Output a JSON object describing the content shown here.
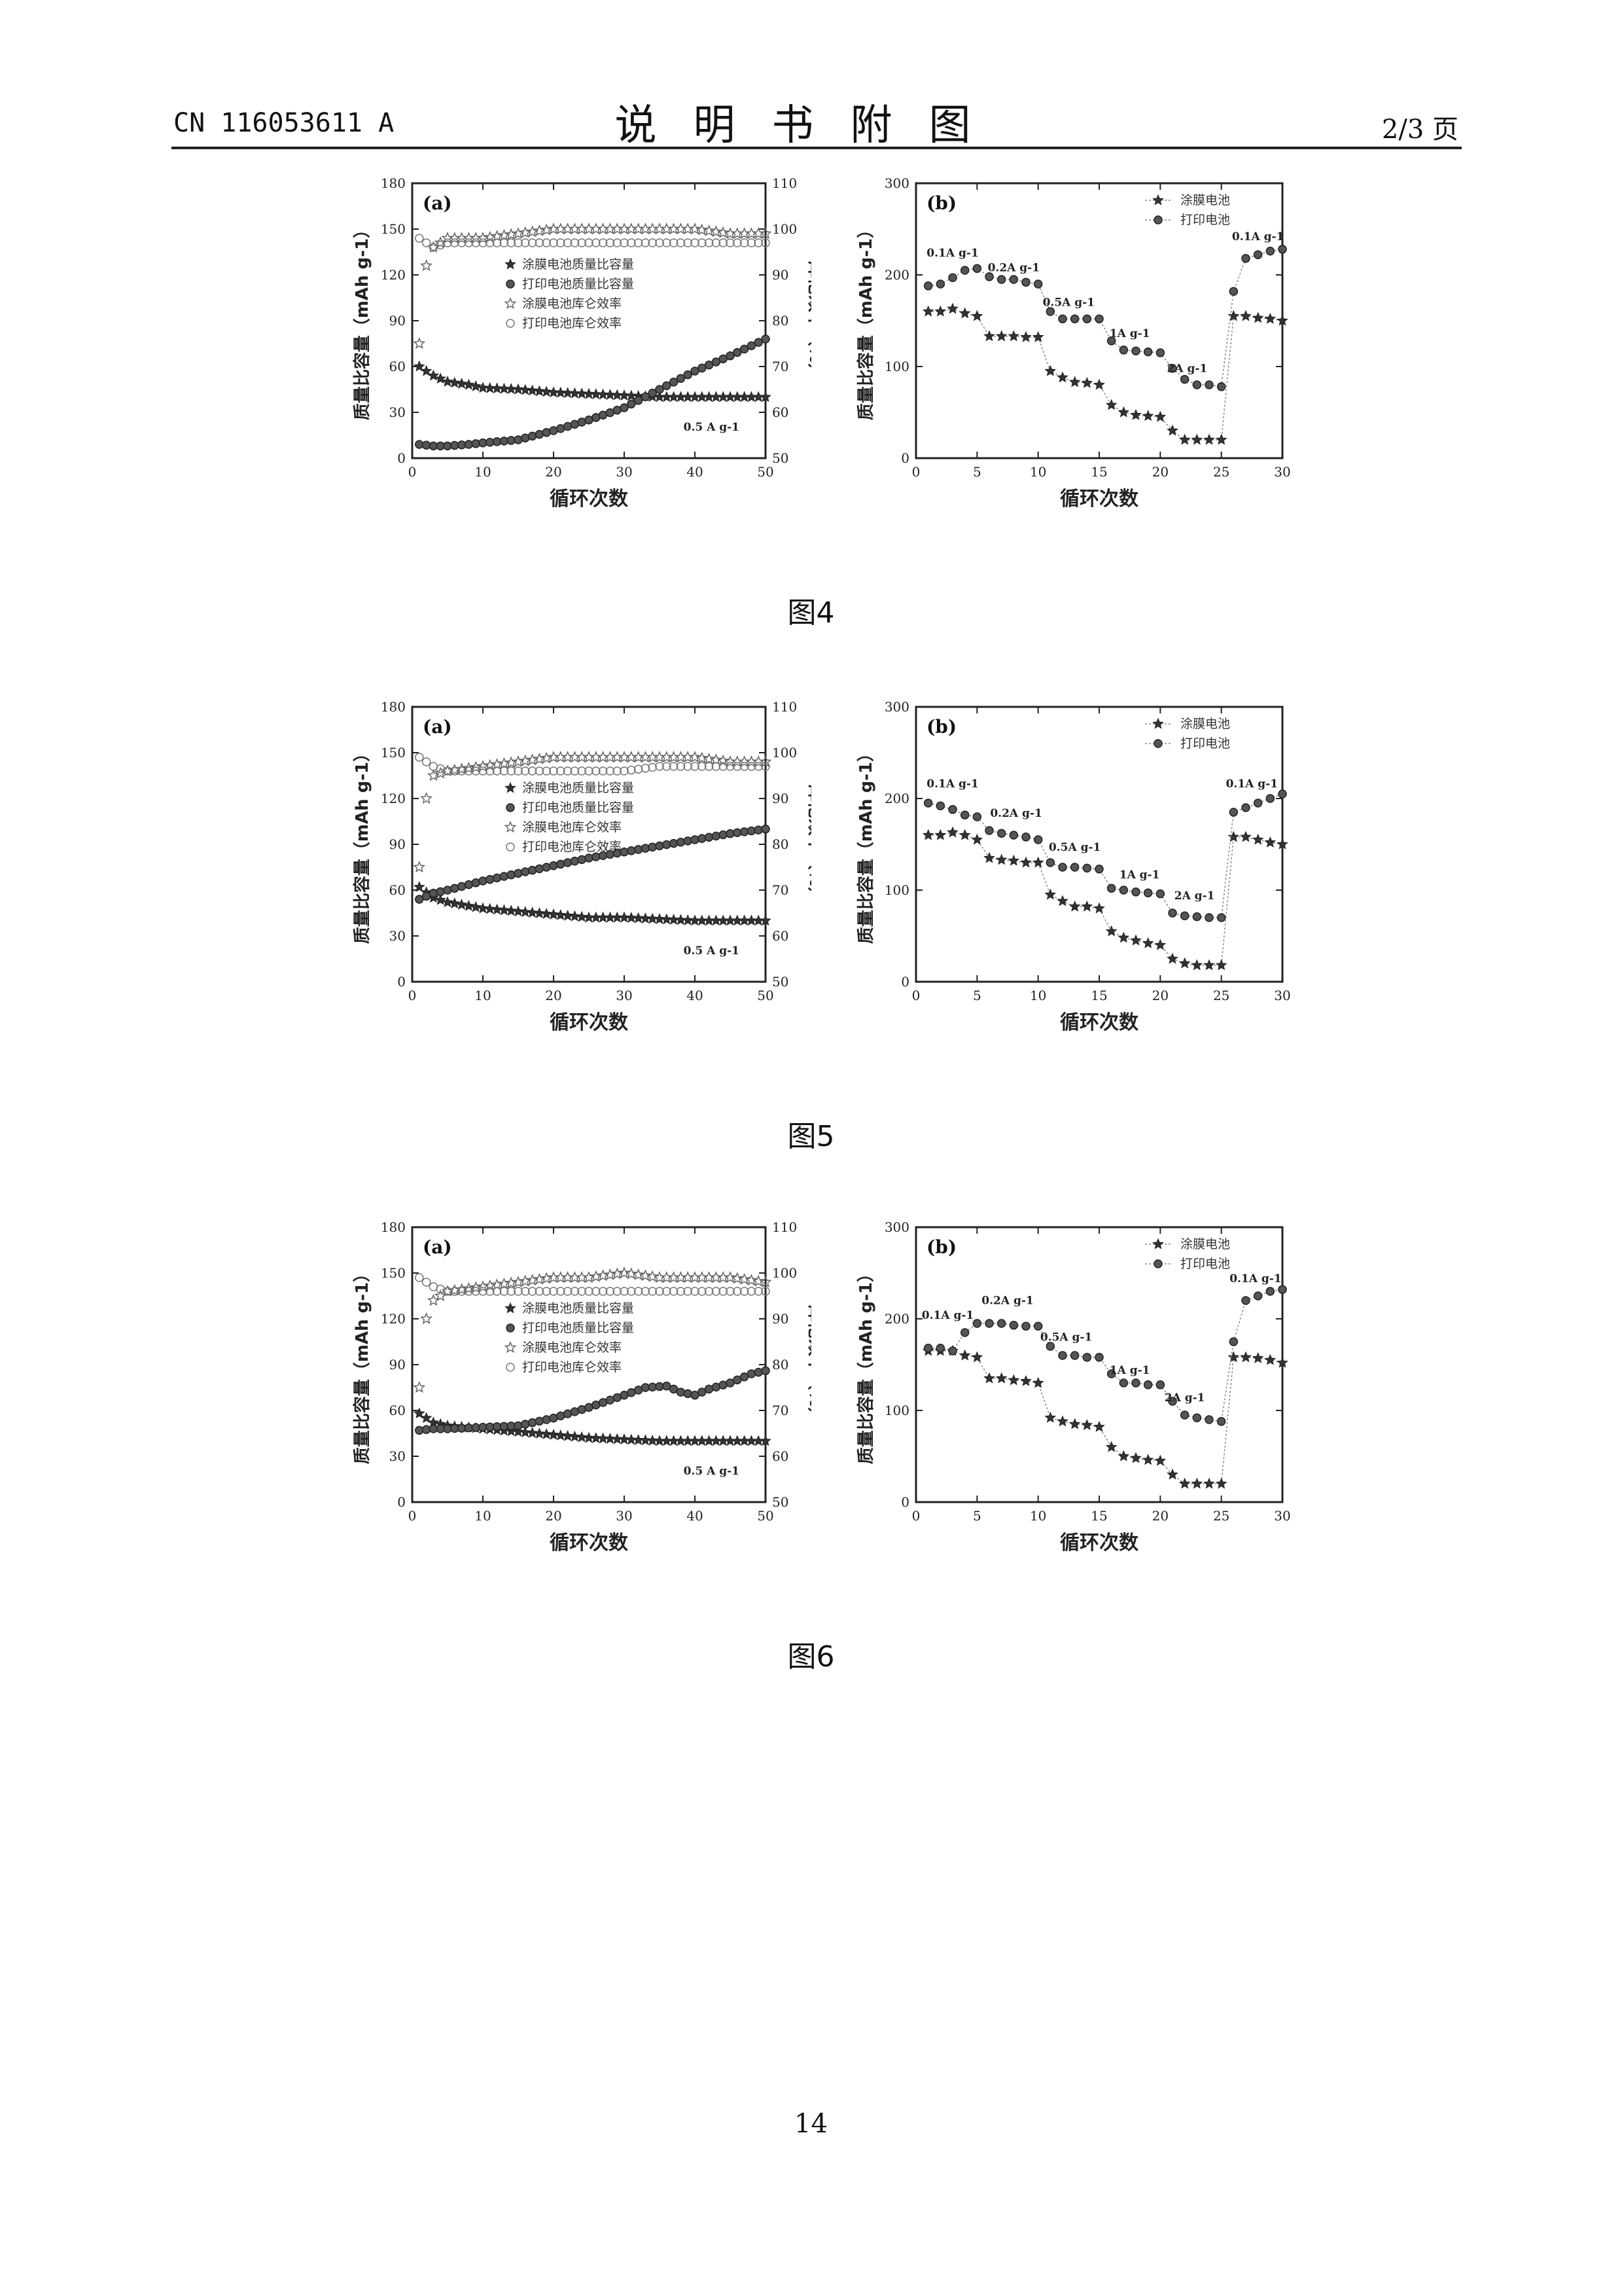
{
  "header": {
    "doc_number": "CN 116053611 A",
    "section_title": "说明书附图",
    "page_of": "2/3 页"
  },
  "page_number": "14",
  "figures": [
    {
      "caption": "图4"
    },
    {
      "caption": "图5"
    },
    {
      "caption": "图6"
    }
  ],
  "chart_data": [
    {
      "figure": "图4",
      "panel": "(a)",
      "type": "scatter",
      "xlabel": "循环次数",
      "ylabel": "质量比容量（mAh g-1）",
      "y2label": "库伦效率（%）",
      "xlim": [
        0,
        50
      ],
      "ylim": [
        0,
        180
      ],
      "y2lim": [
        50,
        110
      ],
      "xticks": [
        0,
        10,
        20,
        30,
        40,
        50
      ],
      "yticks": [
        0,
        30,
        60,
        90,
        120,
        150,
        180
      ],
      "y2ticks": [
        50,
        60,
        70,
        80,
        90,
        100,
        110
      ],
      "annotation": "0.5 A g-1",
      "legend_position": "center",
      "series": [
        {
          "name": "涂膜电池质量比容量",
          "axis": "left",
          "marker": "star",
          "x": [
            1,
            3,
            5,
            8,
            10,
            15,
            20,
            25,
            30,
            35,
            40,
            45,
            50
          ],
          "values": [
            60,
            54,
            50,
            48,
            46,
            45,
            43,
            42,
            41,
            40,
            40,
            40,
            40
          ]
        },
        {
          "name": "打印电池质量比容量",
          "axis": "left",
          "marker": "filled-circle",
          "x": [
            1,
            3,
            5,
            8,
            10,
            15,
            20,
            25,
            30,
            35,
            40,
            45,
            50
          ],
          "values": [
            9,
            8,
            8,
            9,
            10,
            12,
            18,
            25,
            33,
            45,
            57,
            67,
            78
          ]
        },
        {
          "name": "涂膜电池库仑效率",
          "axis": "right",
          "marker": "open-star",
          "x": [
            1,
            2,
            3,
            5,
            10,
            15,
            20,
            25,
            30,
            35,
            40,
            45,
            50
          ],
          "values": [
            75,
            92,
            96,
            98,
            98,
            99,
            100,
            100,
            100,
            100,
            100,
            99,
            99
          ]
        },
        {
          "name": "打印电池库仑效率",
          "axis": "right",
          "marker": "open-circle",
          "x": [
            1,
            2,
            3,
            5,
            10,
            15,
            20,
            25,
            30,
            35,
            40,
            45,
            50
          ],
          "values": [
            98,
            97,
            96,
            97,
            97,
            97,
            97,
            97,
            97,
            97,
            97,
            97,
            97
          ]
        }
      ]
    },
    {
      "figure": "图4",
      "panel": "(b)",
      "type": "line",
      "xlabel": "循环次数",
      "ylabel": "质量比容量（mAh g-1）",
      "xlim": [
        0,
        30
      ],
      "ylim": [
        0,
        300
      ],
      "xticks": [
        0,
        5,
        10,
        15,
        20,
        25,
        30
      ],
      "yticks": [
        0,
        100,
        200,
        300
      ],
      "legend_position": "top-right",
      "rate_labels": [
        {
          "text": "0.1A g-1",
          "x": 3,
          "y": 220
        },
        {
          "text": "0.2A g-1",
          "x": 8,
          "y": 204
        },
        {
          "text": "0.5A g-1",
          "x": 12.5,
          "y": 166
        },
        {
          "text": "1A g-1",
          "x": 17.5,
          "y": 132
        },
        {
          "text": "2A g-1",
          "x": 22.2,
          "y": 94
        },
        {
          "text": "0.1A g-1",
          "x": 28,
          "y": 238
        }
      ],
      "series": [
        {
          "name": "涂膜电池",
          "marker": "star",
          "x": [
            1,
            2,
            3,
            4,
            5,
            6,
            7,
            8,
            9,
            10,
            11,
            12,
            13,
            14,
            15,
            16,
            17,
            18,
            19,
            20,
            21,
            22,
            23,
            24,
            25,
            26,
            27,
            28,
            29,
            30
          ],
          "values": [
            160,
            160,
            163,
            158,
            155,
            133,
            133,
            133,
            132,
            132,
            95,
            88,
            83,
            82,
            80,
            58,
            50,
            47,
            46,
            45,
            30,
            20,
            20,
            20,
            20,
            155,
            155,
            153,
            152,
            150
          ]
        },
        {
          "name": "打印电池",
          "marker": "filled-circle",
          "x": [
            1,
            2,
            3,
            4,
            5,
            6,
            7,
            8,
            9,
            10,
            11,
            12,
            13,
            14,
            15,
            16,
            17,
            18,
            19,
            20,
            21,
            22,
            23,
            24,
            25,
            26,
            27,
            28,
            29,
            30
          ],
          "values": [
            188,
            190,
            197,
            205,
            207,
            198,
            195,
            195,
            192,
            190,
            160,
            152,
            152,
            152,
            152,
            128,
            118,
            117,
            116,
            115,
            98,
            86,
            80,
            80,
            78,
            182,
            218,
            222,
            226,
            228
          ]
        }
      ]
    },
    {
      "figure": "图5",
      "panel": "(a)",
      "type": "scatter",
      "xlabel": "循环次数",
      "ylabel": "质量比容量（mAh g-1）",
      "y2label": "库伦效率（%）",
      "xlim": [
        0,
        50
      ],
      "ylim": [
        0,
        180
      ],
      "y2lim": [
        50,
        110
      ],
      "xticks": [
        0,
        10,
        20,
        30,
        40,
        50
      ],
      "yticks": [
        0,
        30,
        60,
        90,
        120,
        150,
        180
      ],
      "y2ticks": [
        50,
        60,
        70,
        80,
        90,
        100,
        110
      ],
      "annotation": "0.5 A g-1",
      "legend_position": "center",
      "series": [
        {
          "name": "涂膜电池质量比容量",
          "axis": "left",
          "marker": "star",
          "x": [
            1,
            3,
            5,
            10,
            15,
            20,
            25,
            30,
            35,
            40,
            45,
            50
          ],
          "values": [
            62,
            55,
            52,
            48,
            46,
            44,
            42,
            42,
            41,
            40,
            40,
            40
          ]
        },
        {
          "name": "打印电池质量比容量",
          "axis": "left",
          "marker": "filled-circle",
          "x": [
            1,
            3,
            5,
            10,
            15,
            20,
            25,
            30,
            35,
            40,
            45,
            50
          ],
          "values": [
            54,
            58,
            60,
            66,
            71,
            76,
            81,
            85,
            89,
            93,
            97,
            100
          ]
        },
        {
          "name": "涂膜电池库仑效率",
          "axis": "right",
          "marker": "open-star",
          "x": [
            1,
            2,
            3,
            5,
            10,
            15,
            20,
            25,
            30,
            35,
            40,
            45,
            50
          ],
          "values": [
            75,
            90,
            95,
            96,
            97,
            98,
            99,
            99,
            99,
            99,
            99,
            98,
            98
          ]
        },
        {
          "name": "打印电池库仑效率",
          "axis": "right",
          "marker": "open-circle",
          "x": [
            1,
            2,
            3,
            5,
            10,
            15,
            20,
            25,
            30,
            35,
            40,
            45,
            50
          ],
          "values": [
            99,
            98,
            97,
            96,
            96,
            96,
            96,
            96,
            96,
            97,
            97,
            97,
            97
          ]
        }
      ]
    },
    {
      "figure": "图5",
      "panel": "(b)",
      "type": "line",
      "xlabel": "循环次数",
      "ylabel": "质量比容量（mAh g-1）",
      "xlim": [
        0,
        30
      ],
      "ylim": [
        0,
        300
      ],
      "xticks": [
        0,
        5,
        10,
        15,
        20,
        25,
        30
      ],
      "yticks": [
        0,
        100,
        200,
        300
      ],
      "legend_position": "top-right",
      "rate_labels": [
        {
          "text": "0.1A g-1",
          "x": 3,
          "y": 212
        },
        {
          "text": "0.2A g-1",
          "x": 8.2,
          "y": 180
        },
        {
          "text": "0.5A g-1",
          "x": 13,
          "y": 143
        },
        {
          "text": "1A g-1",
          "x": 18.3,
          "y": 113
        },
        {
          "text": "2A g-1",
          "x": 22.8,
          "y": 90
        },
        {
          "text": "0.1A g-1",
          "x": 27.5,
          "y": 212
        }
      ],
      "series": [
        {
          "name": "涂膜电池",
          "marker": "star",
          "x": [
            1,
            2,
            3,
            4,
            5,
            6,
            7,
            8,
            9,
            10,
            11,
            12,
            13,
            14,
            15,
            16,
            17,
            18,
            19,
            20,
            21,
            22,
            23,
            24,
            25,
            26,
            27,
            28,
            29,
            30
          ],
          "values": [
            160,
            160,
            163,
            160,
            155,
            135,
            133,
            132,
            130,
            130,
            95,
            88,
            82,
            82,
            80,
            55,
            48,
            45,
            42,
            40,
            25,
            20,
            18,
            18,
            18,
            158,
            158,
            155,
            152,
            150
          ]
        },
        {
          "name": "打印电池",
          "marker": "filled-circle",
          "x": [
            1,
            2,
            3,
            4,
            5,
            6,
            7,
            8,
            9,
            10,
            11,
            12,
            13,
            14,
            15,
            16,
            17,
            18,
            19,
            20,
            21,
            22,
            23,
            24,
            25,
            26,
            27,
            28,
            29,
            30
          ],
          "values": [
            195,
            192,
            188,
            182,
            180,
            165,
            162,
            160,
            158,
            155,
            130,
            125,
            125,
            124,
            123,
            102,
            100,
            98,
            97,
            96,
            75,
            72,
            71,
            70,
            70,
            185,
            190,
            195,
            200,
            205
          ]
        }
      ]
    },
    {
      "figure": "图6",
      "panel": "(a)",
      "type": "scatter",
      "xlabel": "循环次数",
      "ylabel": "质量比容量（mAh g-1）",
      "y2label": "库伦效率（%）",
      "xlim": [
        0,
        50
      ],
      "ylim": [
        0,
        180
      ],
      "y2lim": [
        50,
        110
      ],
      "xticks": [
        0,
        10,
        20,
        30,
        40,
        50
      ],
      "yticks": [
        0,
        30,
        60,
        90,
        120,
        150,
        180
      ],
      "y2ticks": [
        50,
        60,
        70,
        80,
        90,
        100,
        110
      ],
      "annotation": "0.5 A g-1",
      "legend_position": "center",
      "series": [
        {
          "name": "涂膜电池质量比容量",
          "axis": "left",
          "marker": "star",
          "x": [
            1,
            3,
            5,
            10,
            15,
            20,
            25,
            30,
            35,
            40,
            45,
            50
          ],
          "values": [
            58,
            52,
            50,
            48,
            46,
            44,
            42,
            41,
            40,
            40,
            40,
            40
          ]
        },
        {
          "name": "打印电池质量比容量",
          "axis": "left",
          "marker": "filled-circle",
          "x": [
            1,
            3,
            5,
            10,
            15,
            20,
            25,
            30,
            33,
            36,
            38,
            40,
            42,
            45,
            48,
            50
          ],
          "values": [
            47,
            48,
            48,
            49,
            50,
            55,
            62,
            70,
            75,
            76,
            72,
            70,
            74,
            78,
            84,
            86
          ]
        },
        {
          "name": "涂膜电池库仑效率",
          "axis": "right",
          "marker": "open-star",
          "x": [
            1,
            2,
            3,
            5,
            10,
            15,
            20,
            25,
            30,
            35,
            40,
            45,
            50
          ],
          "values": [
            75,
            90,
            94,
            96,
            97,
            98,
            99,
            99,
            100,
            99,
            99,
            99,
            98
          ]
        },
        {
          "name": "打印电池库仑效率",
          "axis": "right",
          "marker": "open-circle",
          "x": [
            1,
            2,
            3,
            5,
            10,
            15,
            20,
            25,
            30,
            35,
            40,
            45,
            50
          ],
          "values": [
            99,
            98,
            97,
            96,
            96,
            96,
            96,
            96,
            96,
            96,
            96,
            96,
            96
          ]
        }
      ]
    },
    {
      "figure": "图6",
      "panel": "(b)",
      "type": "line",
      "xlabel": "循环次数",
      "ylabel": "质量比容量（mAh g-1）",
      "xlim": [
        0,
        30
      ],
      "ylim": [
        0,
        300
      ],
      "xticks": [
        0,
        5,
        10,
        15,
        20,
        25,
        30
      ],
      "yticks": [
        0,
        100,
        200,
        300
      ],
      "legend_position": "top-right",
      "rate_labels": [
        {
          "text": "0.1A g-1",
          "x": 2.6,
          "y": 200
        },
        {
          "text": "0.2A g-1",
          "x": 7.5,
          "y": 216
        },
        {
          "text": "0.5A g-1",
          "x": 12.3,
          "y": 176
        },
        {
          "text": "1A g-1",
          "x": 17.5,
          "y": 140
        },
        {
          "text": "2A g-1",
          "x": 22,
          "y": 110
        },
        {
          "text": "0.1A g-1",
          "x": 27.8,
          "y": 240
        }
      ],
      "series": [
        {
          "name": "涂膜电池",
          "marker": "star",
          "x": [
            1,
            2,
            3,
            4,
            5,
            6,
            7,
            8,
            9,
            10,
            11,
            12,
            13,
            14,
            15,
            16,
            17,
            18,
            19,
            20,
            21,
            22,
            23,
            24,
            25,
            26,
            27,
            28,
            29,
            30
          ],
          "values": [
            165,
            165,
            165,
            160,
            158,
            135,
            135,
            133,
            132,
            130,
            92,
            88,
            85,
            84,
            82,
            60,
            50,
            48,
            46,
            45,
            30,
            20,
            20,
            20,
            20,
            158,
            158,
            157,
            155,
            152
          ]
        },
        {
          "name": "打印电池",
          "marker": "filled-circle",
          "x": [
            1,
            2,
            3,
            4,
            5,
            6,
            7,
            8,
            9,
            10,
            11,
            12,
            13,
            14,
            15,
            16,
            17,
            18,
            19,
            20,
            21,
            22,
            23,
            24,
            25,
            26,
            27,
            28,
            29,
            30
          ],
          "values": [
            168,
            168,
            165,
            185,
            195,
            195,
            195,
            193,
            192,
            192,
            170,
            160,
            160,
            158,
            158,
            140,
            130,
            130,
            128,
            128,
            110,
            95,
            92,
            90,
            88,
            175,
            220,
            225,
            230,
            232
          ]
        }
      ]
    }
  ]
}
